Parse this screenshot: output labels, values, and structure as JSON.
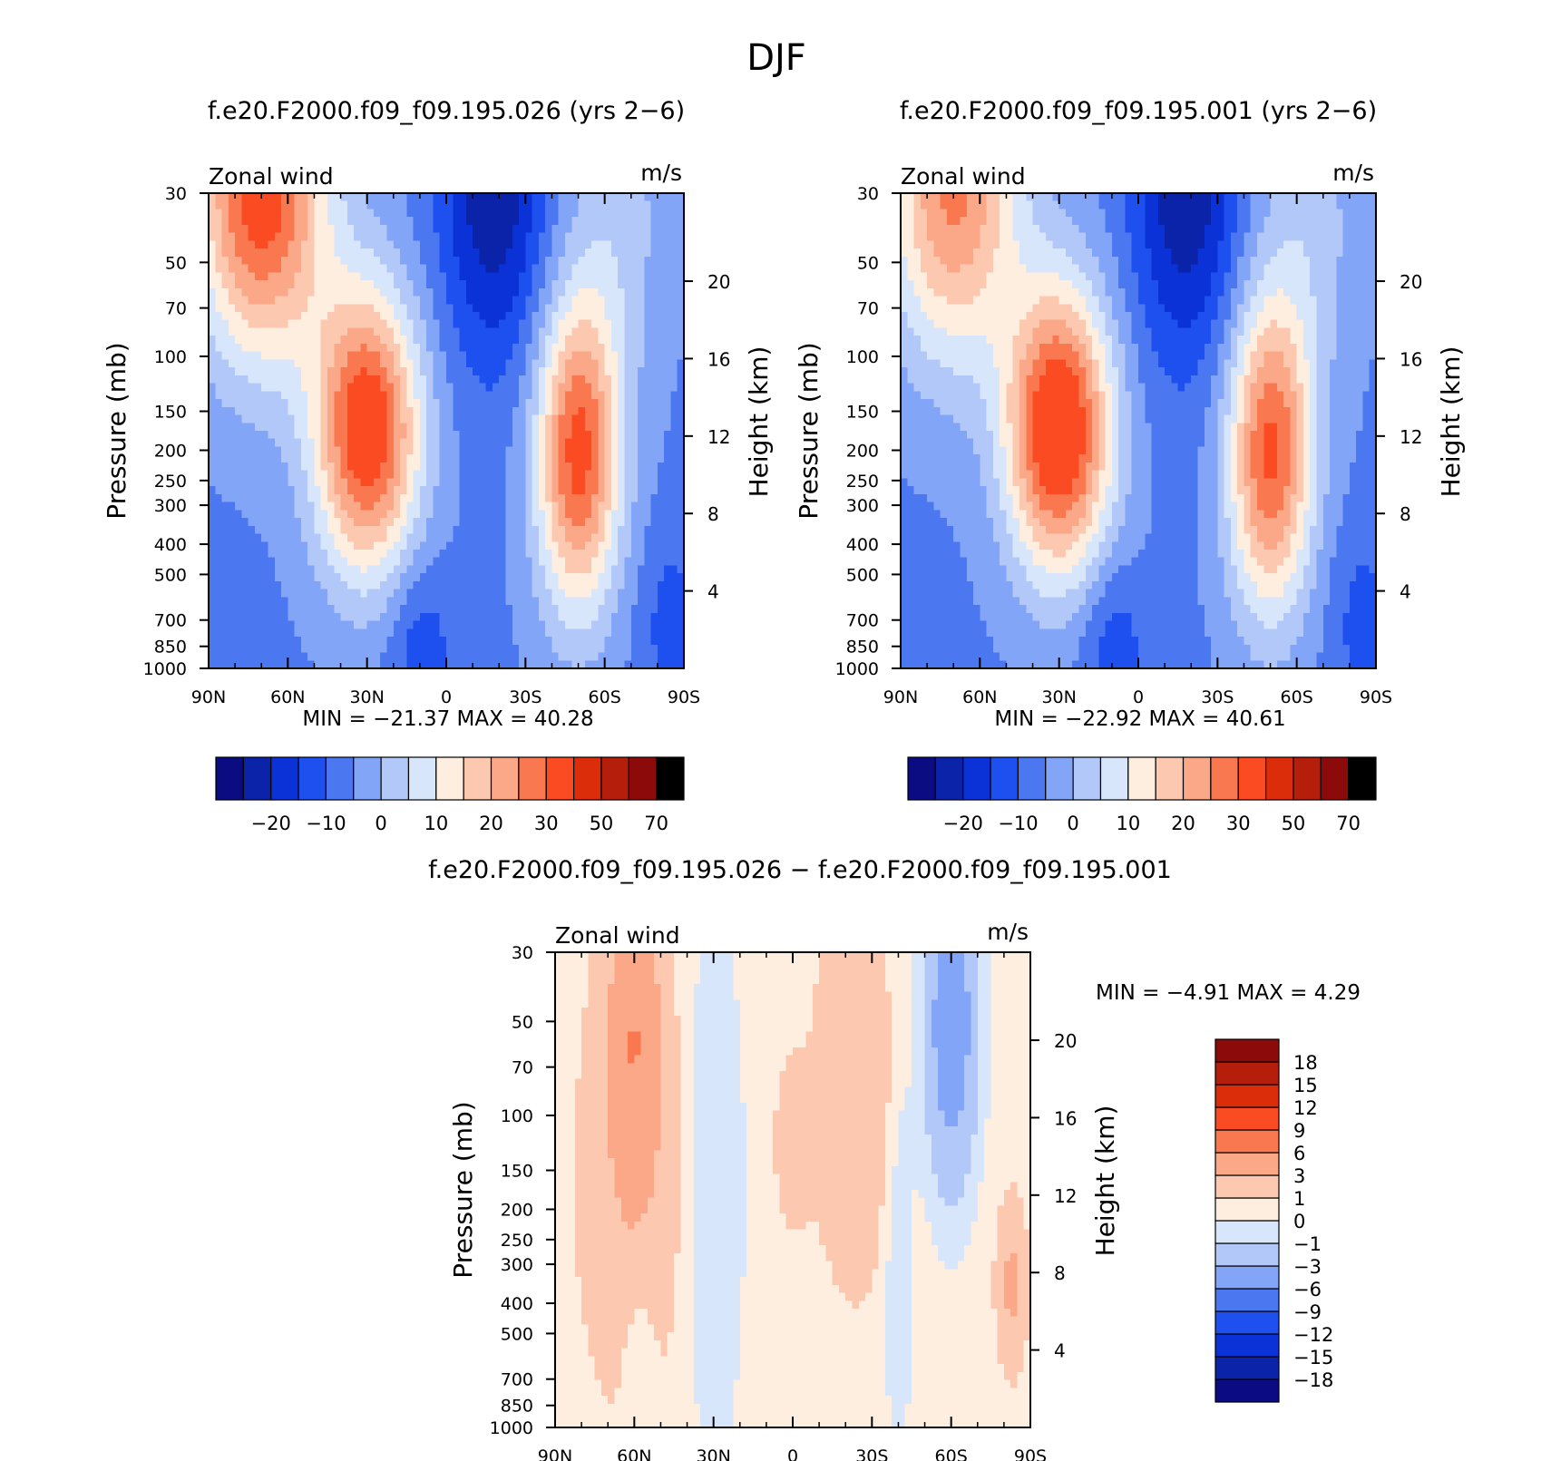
{
  "figure": {
    "title": "DJF"
  },
  "colors": {
    "abs_palette": [
      "#0b0b82",
      "#0a23a8",
      "#0a32d6",
      "#1e50f0",
      "#4b78f0",
      "#82a5f8",
      "#b2c8f8",
      "#d8e6fb",
      "#fdeee0",
      "#fcc8b0",
      "#fba888",
      "#fa7850",
      "#fa4b23",
      "#dc2d0a",
      "#b41e0a",
      "#8c0a0a"
    ],
    "diff_palette": [
      "#0b0b82",
      "#0a23a8",
      "#0a32d6",
      "#1e50f0",
      "#4b78f0",
      "#82a5f8",
      "#b2c8f8",
      "#d8e6fb",
      "#fdeee0",
      "#fcc8b0",
      "#fba888",
      "#fa7850",
      "#fa4b23",
      "#dc2d0a",
      "#b41e0a",
      "#8c0a0a"
    ]
  },
  "chart_data": [
    {
      "type": "heatmap",
      "panel": "top-left",
      "title": "f.e20.F2000.f09_f09.195.026 (yrs 2−6)",
      "variable": "Zonal wind",
      "units": "m/s",
      "xlabel": "",
      "ylabel": "Pressure (mb)",
      "y2label": "Height (km)",
      "xlim": [
        90,
        -90
      ],
      "ylim": [
        1000,
        30
      ],
      "yscale": "log",
      "x_ticks": [
        "90N",
        "60N",
        "30N",
        "0",
        "30S",
        "60S",
        "90S"
      ],
      "y_ticks": [
        "30",
        "50",
        "70",
        "100",
        "150",
        "200",
        "250",
        "300",
        "400",
        "500",
        "700",
        "850",
        "1000"
      ],
      "y2_ticks": [
        "20",
        "16",
        "12",
        "8",
        "4"
      ],
      "min_label": "MIN =",
      "min": "−21.37",
      "max_label": "MAX =",
      "max": "40.28",
      "colorbar": {
        "orientation": "horizontal",
        "levels": [
          -25,
          -20,
          -15,
          -10,
          -5,
          0,
          5,
          10,
          15,
          20,
          25,
          30,
          40,
          50,
          60,
          70
        ],
        "tick_labels": [
          "−20",
          "−10",
          "0",
          "10",
          "20",
          "30",
          "50",
          "70"
        ]
      },
      "features": [
        {
          "lat": 65,
          "p": 35,
          "u": 32
        },
        {
          "lat": 30,
          "p": 200,
          "u": 40
        },
        {
          "lat": -50,
          "p": 230,
          "u": 35
        },
        {
          "lat": -18,
          "p": 35,
          "u": -21
        },
        {
          "lat": 12,
          "p": 850,
          "u": -12
        }
      ]
    },
    {
      "type": "heatmap",
      "panel": "top-right",
      "title": "f.e20.F2000.f09_f09.195.001 (yrs 2−6)",
      "variable": "Zonal wind",
      "units": "m/s",
      "xlabel": "",
      "ylabel": "Pressure (mb)",
      "y2label": "Height (km)",
      "xlim": [
        90,
        -90
      ],
      "ylim": [
        1000,
        30
      ],
      "yscale": "log",
      "x_ticks": [
        "90N",
        "60N",
        "30N",
        "0",
        "30S",
        "60S",
        "90S"
      ],
      "y_ticks": [
        "30",
        "50",
        "70",
        "100",
        "150",
        "200",
        "250",
        "300",
        "400",
        "500",
        "700",
        "850",
        "1000"
      ],
      "y2_ticks": [
        "20",
        "16",
        "12",
        "8",
        "4"
      ],
      "min_label": "MIN =",
      "min": "−22.92",
      "max_label": "MAX =",
      "max": "40.61",
      "colorbar": {
        "orientation": "horizontal",
        "levels": [
          -25,
          -20,
          -15,
          -10,
          -5,
          0,
          5,
          10,
          15,
          20,
          25,
          30,
          40,
          50,
          60,
          70
        ],
        "tick_labels": [
          "−20",
          "−10",
          "0",
          "10",
          "20",
          "30",
          "50",
          "70"
        ]
      },
      "features": [
        {
          "lat": 65,
          "p": 35,
          "u": 27
        },
        {
          "lat": 30,
          "p": 200,
          "u": 40
        },
        {
          "lat": -50,
          "p": 230,
          "u": 34
        },
        {
          "lat": -18,
          "p": 35,
          "u": -22
        },
        {
          "lat": 12,
          "p": 850,
          "u": -12
        }
      ]
    },
    {
      "type": "heatmap",
      "panel": "bottom",
      "title": "f.e20.F2000.f09_f09.195.026 − f.e20.F2000.f09_f09.195.001",
      "variable": "Zonal wind",
      "units": "m/s",
      "xlabel": "",
      "ylabel": "Pressure (mb)",
      "y2label": "Height (km)",
      "xlim": [
        90,
        -90
      ],
      "ylim": [
        1000,
        30
      ],
      "yscale": "log",
      "x_ticks": [
        "90N",
        "60N",
        "30N",
        "0",
        "30S",
        "60S",
        "90S"
      ],
      "y_ticks": [
        "30",
        "50",
        "70",
        "100",
        "150",
        "200",
        "250",
        "300",
        "400",
        "500",
        "700",
        "850",
        "1000"
      ],
      "y2_ticks": [
        "20",
        "16",
        "12",
        "8",
        "4"
      ],
      "min_label": "MIN =",
      "min": "−4.91",
      "max_label": "MAX =",
      "max": "4.29",
      "colorbar": {
        "orientation": "vertical",
        "levels": [
          -18,
          -15,
          -12,
          -9,
          -6,
          -3,
          -1,
          0,
          1,
          3,
          6,
          9,
          12,
          15,
          18
        ],
        "tick_labels": [
          "−18",
          "−15",
          "−12",
          "−9",
          "−6",
          "−3",
          "−1",
          "0",
          "1",
          "3",
          "6",
          "9",
          "12",
          "15",
          "18"
        ]
      },
      "features": [
        {
          "lat": 60,
          "p": 50,
          "u": 4.2
        },
        {
          "lat": -58,
          "p": 70,
          "u": -4.9
        },
        {
          "lat": -30,
          "p": 60,
          "u": 2.0
        },
        {
          "lat": 0,
          "p": 130,
          "u": 1.5
        },
        {
          "lat": -83,
          "p": 330,
          "u": 2.5
        }
      ]
    }
  ]
}
